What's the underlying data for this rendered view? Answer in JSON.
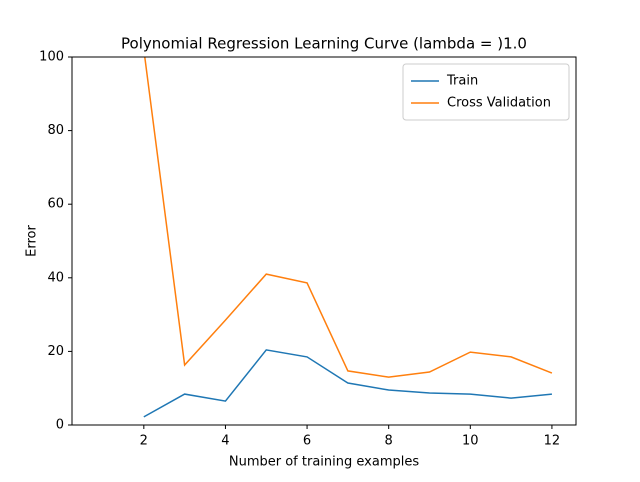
{
  "chart_data": {
    "type": "line",
    "title": "Polynomial Regression Learning Curve (lambda = )1.0",
    "x_label": "Number of training examples",
    "y_label": "Error",
    "x": [
      2,
      3,
      4,
      5,
      6,
      7,
      8,
      9,
      10,
      11,
      12
    ],
    "series": [
      {
        "name": "Train",
        "color": "#1f77b4",
        "values": [
          2.2,
          8.4,
          6.5,
          20.4,
          18.5,
          11.4,
          9.5,
          8.7,
          8.4,
          7.3,
          8.4
        ]
      },
      {
        "name": "Cross Validation",
        "color": "#ff7f0e",
        "values": [
          102,
          16.3,
          28.5,
          41,
          38.6,
          14.7,
          13,
          14.4,
          19.8,
          18.5,
          14.1
        ]
      }
    ],
    "xlim": [
      0.24,
      12.59
    ],
    "xticks": [
      2,
      4,
      6,
      8,
      10,
      12
    ],
    "ylim": [
      0,
      100
    ],
    "yticks": [
      0,
      20,
      40,
      60,
      80,
      100
    ],
    "legend": "upper right",
    "grid": false
  }
}
